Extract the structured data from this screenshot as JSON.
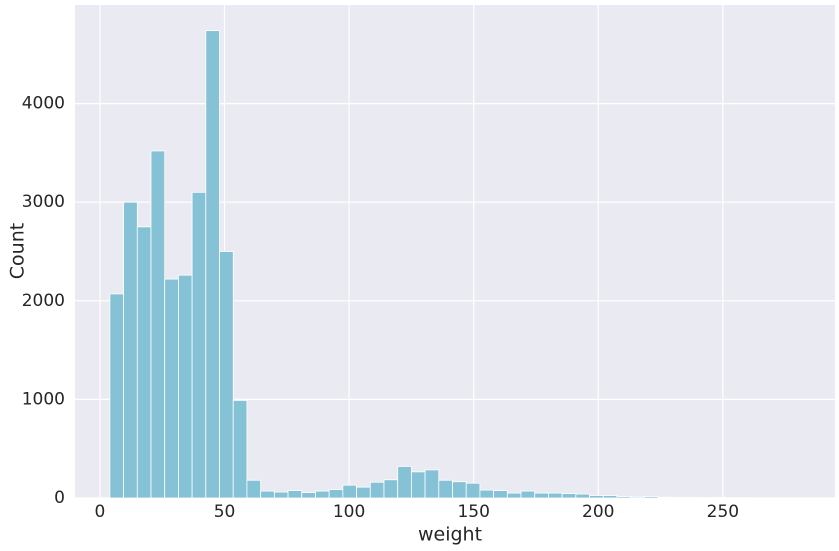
{
  "chart_data": {
    "type": "histogram",
    "x_label": "weight",
    "y_label": "Count",
    "bins": [
      4,
      9.5,
      15,
      20.5,
      26,
      31.5,
      37,
      42.5,
      48,
      53.5,
      59,
      64.5,
      70,
      75.5,
      81,
      86.5,
      92,
      97.5,
      103,
      108.5,
      114,
      119.5,
      125,
      130.5,
      136,
      141.5,
      147,
      152.5,
      158,
      163.5,
      169,
      174.5,
      180,
      185.5,
      191,
      196.5,
      202,
      207.5,
      213,
      218.5,
      224,
      229.5,
      235,
      240.5,
      246,
      251.5,
      257,
      262.5,
      268,
      273.5,
      279
    ],
    "values": [
      2070,
      3000,
      2750,
      3520,
      2220,
      2260,
      3100,
      4740,
      2500,
      990,
      180,
      70,
      60,
      75,
      55,
      70,
      85,
      130,
      110,
      160,
      185,
      320,
      265,
      285,
      180,
      165,
      150,
      80,
      75,
      50,
      70,
      50,
      50,
      45,
      40,
      25,
      25,
      15,
      10,
      15,
      8,
      5,
      5,
      3,
      5,
      2,
      2,
      1,
      1,
      1
    ],
    "color": "#86c2d6",
    "xlim": [
      -10,
      295
    ],
    "ylim": [
      0,
      5000
    ],
    "xticks": [
      0,
      50,
      100,
      150,
      200,
      250
    ],
    "yticks": [
      0,
      1000,
      2000,
      3000,
      4000
    ],
    "grid": true
  }
}
